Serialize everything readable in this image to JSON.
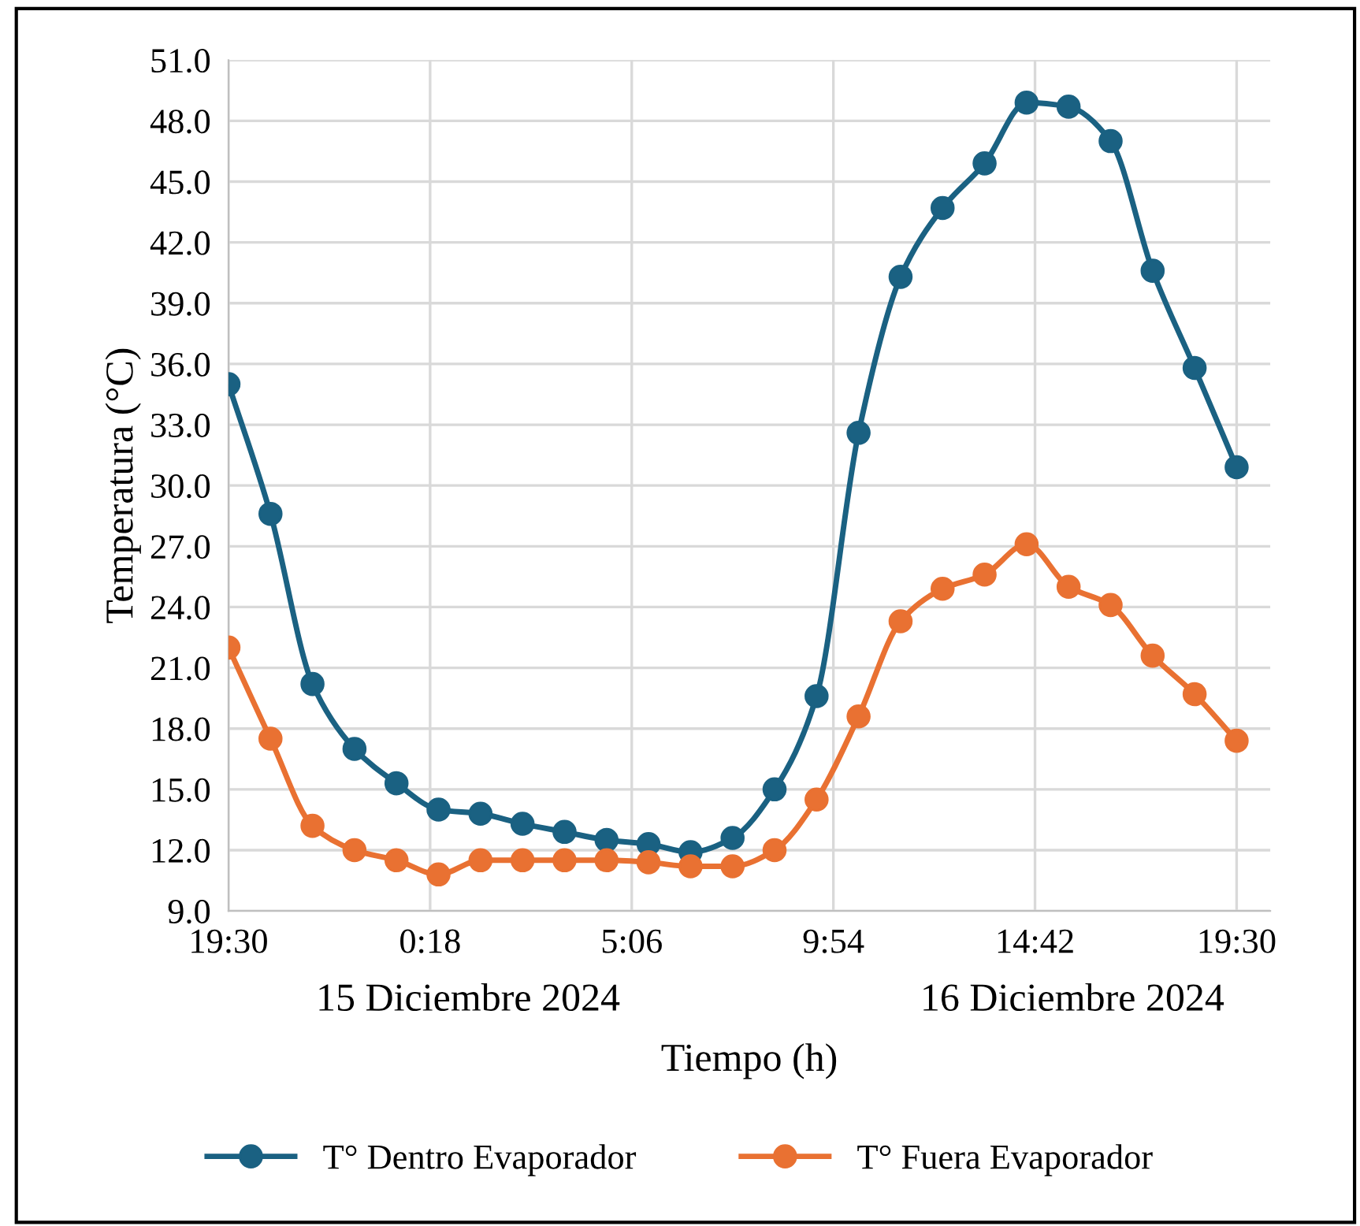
{
  "chart_data": {
    "type": "line",
    "xlabel": "Tiempo (h)",
    "ylabel": "Temperatura (°C)",
    "x": [
      "2024-12-15T19:30",
      "2024-12-15T20:30",
      "2024-12-15T21:30",
      "2024-12-15T22:30",
      "2024-12-15T23:30",
      "2024-12-16T00:30",
      "2024-12-16T01:30",
      "2024-12-16T02:30",
      "2024-12-16T03:30",
      "2024-12-16T04:30",
      "2024-12-16T05:30",
      "2024-12-16T06:30",
      "2024-12-16T07:30",
      "2024-12-16T08:30",
      "2024-12-16T09:30",
      "2024-12-16T10:30",
      "2024-12-16T11:30",
      "2024-12-16T12:30",
      "2024-12-16T13:30",
      "2024-12-16T14:30",
      "2024-12-16T15:30",
      "2024-12-16T16:30",
      "2024-12-16T17:30",
      "2024-12-16T18:30",
      "2024-12-16T19:30"
    ],
    "series": [
      {
        "name": "T° Dentro Evaporador",
        "color": "#1a6182",
        "values": [
          35.0,
          28.6,
          20.2,
          17.0,
          15.3,
          14.0,
          13.8,
          13.3,
          12.9,
          12.5,
          12.3,
          11.9,
          12.6,
          15.0,
          19.6,
          32.6,
          40.3,
          43.7,
          45.9,
          48.9,
          48.7,
          47.0,
          40.6,
          35.8,
          30.9
        ]
      },
      {
        "name": "T° Fuera Evaporador",
        "color": "#e97132",
        "values": [
          22.0,
          17.5,
          13.2,
          12.0,
          11.5,
          10.8,
          11.5,
          11.5,
          11.5,
          11.5,
          11.4,
          11.2,
          11.2,
          12.0,
          14.5,
          18.6,
          23.3,
          24.9,
          25.6,
          27.1,
          25.0,
          24.1,
          21.6,
          19.7,
          17.4
        ]
      }
    ],
    "xlim": [
      "2024-12-15T19:30",
      "2024-12-16T20:18"
    ],
    "xticks": [
      {
        "value": "2024-12-15T19:30",
        "label": "19:30"
      },
      {
        "value": "2024-12-16T00:18",
        "label": "0:18"
      },
      {
        "value": "2024-12-16T05:06",
        "label": "5:06"
      },
      {
        "value": "2024-12-16T09:54",
        "label": "9:54"
      },
      {
        "value": "2024-12-16T14:42",
        "label": "14:42"
      },
      {
        "value": "2024-12-16T19:30",
        "label": "19:30"
      }
    ],
    "ylim": [
      9.0,
      51.0
    ],
    "yticks": [
      {
        "value": 9,
        "label": "9.0"
      },
      {
        "value": 12,
        "label": "12.0"
      },
      {
        "value": 15,
        "label": "15.0"
      },
      {
        "value": 18,
        "label": "18.0"
      },
      {
        "value": 21,
        "label": "21.0"
      },
      {
        "value": 24,
        "label": "24.0"
      },
      {
        "value": 27,
        "label": "27.0"
      },
      {
        "value": 30,
        "label": "30.0"
      },
      {
        "value": 33,
        "label": "33.0"
      },
      {
        "value": 36,
        "label": "36.0"
      },
      {
        "value": 39,
        "label": "39.0"
      },
      {
        "value": 42,
        "label": "42.0"
      },
      {
        "value": 45,
        "label": "45.0"
      },
      {
        "value": 48,
        "label": "48.0"
      },
      {
        "value": 51,
        "label": "51.0"
      }
    ],
    "annotations": [
      "15 Diciembre 2024",
      "16 Diciembre 2024"
    ],
    "grid": true,
    "legend": "bottom",
    "marker": "circle",
    "line_style": "solid"
  }
}
